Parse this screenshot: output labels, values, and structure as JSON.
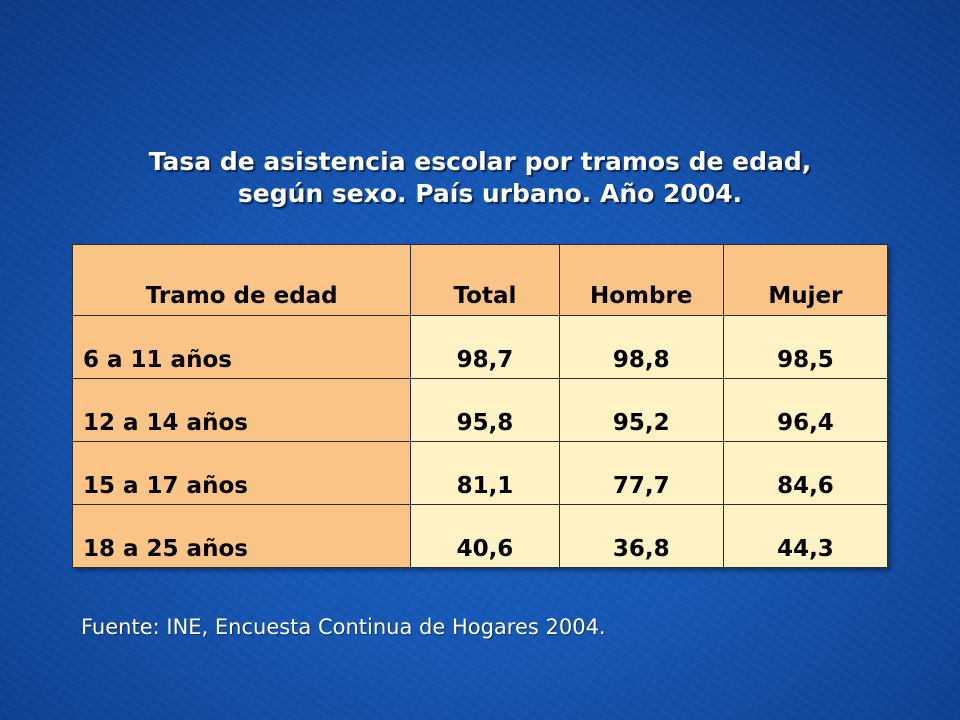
{
  "title": {
    "line1": "Tasa de asistencia escolar por tramos de edad,",
    "line2": "según sexo. País urbano. Año 2004."
  },
  "table": {
    "headers": [
      "Tramo de edad",
      "Total",
      "Hombre",
      "Mujer"
    ],
    "rows": [
      {
        "label": "6 a 11 años",
        "total": "98,7",
        "hombre": "98,8",
        "mujer": "98,5"
      },
      {
        "label": "12 a 14 años",
        "total": "95,8",
        "hombre": "95,2",
        "mujer": "96,4"
      },
      {
        "label": "15 a 17 años",
        "total": "81,1",
        "hombre": "77,7",
        "mujer": "84,6"
      },
      {
        "label": "18 a 25 años",
        "total": "40,6",
        "hombre": "36,8",
        "mujer": "44,3"
      }
    ]
  },
  "source": "Fuente: INE, Encuesta Continua de Hogares 2004.",
  "colors": {
    "background": "#1656b3",
    "header_fill": "#f9c486",
    "cell_fill": "#fff3c5",
    "text_light": "#ffffff"
  }
}
